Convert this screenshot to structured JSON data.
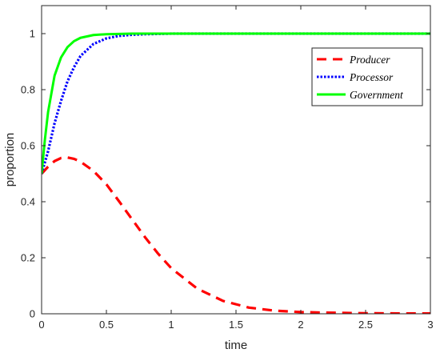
{
  "chart_data": {
    "type": "line",
    "title": "",
    "xlabel": "time",
    "ylabel": "proportion",
    "xlim": [
      0,
      3
    ],
    "ylim": [
      0,
      1.1
    ],
    "xticks": [
      0,
      0.5,
      1,
      1.5,
      2,
      2.5,
      3
    ],
    "xtick_labels": [
      "0",
      "0.5",
      "1",
      "1.5",
      "2",
      "2.5",
      "3"
    ],
    "yticks": [
      0,
      0.2,
      0.4,
      0.6,
      0.8,
      1
    ],
    "ytick_labels": [
      "0",
      "0.2",
      "0.4",
      "0.6",
      "0.8",
      "1"
    ],
    "grid": false,
    "legend_position": "top-right",
    "series": [
      {
        "name": "Producer",
        "color": "#ff0000",
        "style": "dashed",
        "x": [
          0,
          0.05,
          0.1,
          0.15,
          0.2,
          0.25,
          0.3,
          0.4,
          0.5,
          0.6,
          0.7,
          0.8,
          0.9,
          1.0,
          1.2,
          1.4,
          1.6,
          1.8,
          2.0,
          2.2,
          2.5,
          2.8,
          3.0
        ],
        "y": [
          0.5,
          0.525,
          0.545,
          0.556,
          0.558,
          0.553,
          0.543,
          0.51,
          0.462,
          0.4,
          0.336,
          0.272,
          0.214,
          0.163,
          0.09,
          0.046,
          0.022,
          0.011,
          0.006,
          0.004,
          0.002,
          0.001,
          0.001
        ]
      },
      {
        "name": "Processor",
        "color": "#0000ff",
        "style": "dotted",
        "x": [
          0,
          0.05,
          0.1,
          0.15,
          0.2,
          0.25,
          0.3,
          0.4,
          0.5,
          0.6,
          0.7,
          0.8,
          0.9,
          1.0,
          1.5,
          2.0,
          2.5,
          3.0
        ],
        "y": [
          0.5,
          0.58,
          0.68,
          0.76,
          0.83,
          0.88,
          0.92,
          0.963,
          0.983,
          0.992,
          0.996,
          0.998,
          0.999,
          1.0,
          1.0,
          1.0,
          1.0,
          1.0
        ]
      },
      {
        "name": "Government",
        "color": "#00ff00",
        "style": "solid",
        "x": [
          0,
          0.025,
          0.05,
          0.1,
          0.15,
          0.2,
          0.25,
          0.3,
          0.4,
          0.5,
          0.6,
          0.7,
          0.8,
          1.0,
          1.5,
          2.0,
          2.5,
          3.0
        ],
        "y": [
          0.5,
          0.62,
          0.72,
          0.85,
          0.915,
          0.952,
          0.973,
          0.985,
          0.995,
          0.998,
          0.999,
          1.0,
          1.0,
          1.0,
          1.0,
          1.0,
          1.0,
          1.0
        ]
      }
    ]
  }
}
